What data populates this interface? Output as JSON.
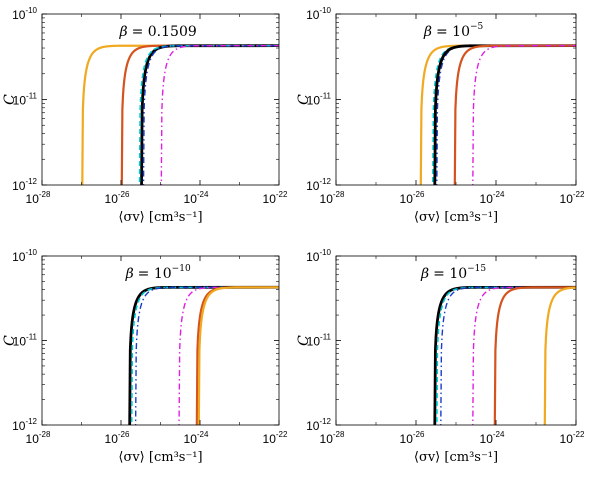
{
  "chart_data": [
    {
      "type": "line",
      "title": "β = 0.1509",
      "title_parts": {
        "sym": "β",
        "eq": "= ",
        "val": "0.1509",
        "sup": ""
      },
      "xlabel": "⟨σv⟩ [cm³s⁻¹]",
      "ylabel": "C",
      "xscale": "log",
      "yscale": "log",
      "xlim_exp": [
        -28,
        -22
      ],
      "ylim_exp": [
        -12,
        -10
      ],
      "x_tick_exps": [
        "-28",
        "-26",
        "-24",
        "-22"
      ],
      "y_tick_exps": [
        "-12",
        "-11",
        "-10"
      ],
      "grid": false,
      "legend": "none",
      "series": [
        {
          "color": "#f0a920",
          "dash": "solid",
          "width": 2.2,
          "onset_log_x": -27.0
        },
        {
          "color": "#d4531e",
          "dash": "solid",
          "width": 2.2,
          "onset_log_x": -26.0
        },
        {
          "color": "#000000",
          "dash": "solid",
          "width": 2.8,
          "onset_log_x": -25.5
        },
        {
          "color": "#00c8d2",
          "dash": "dashed",
          "width": 1.6,
          "onset_log_x": -25.55
        },
        {
          "color": "#1a3cc8",
          "dash": "dashdot",
          "width": 1.4,
          "onset_log_x": -25.45
        },
        {
          "color": "#e020e0",
          "dash": "dashdot",
          "width": 1.4,
          "onset_log_x": -25.0
        }
      ]
    },
    {
      "type": "line",
      "title": "β = 10⁻⁵",
      "title_parts": {
        "sym": "β",
        "eq": "= ",
        "val": "10",
        "sup": "−5"
      },
      "xlabel": "⟨σv⟩ [cm³s⁻¹]",
      "ylabel": "C",
      "xscale": "log",
      "yscale": "log",
      "xlim_exp": [
        -28,
        -22
      ],
      "ylim_exp": [
        -12,
        -10
      ],
      "x_tick_exps": [
        "-28",
        "-26",
        "-24",
        "-22"
      ],
      "y_tick_exps": [
        "-12",
        "-11",
        "-10"
      ],
      "grid": false,
      "legend": "none",
      "series": [
        {
          "color": "#f0a920",
          "dash": "solid",
          "width": 2.2,
          "onset_log_x": -25.9
        },
        {
          "color": "#00c8d2",
          "dash": "dashed",
          "width": 1.6,
          "onset_log_x": -25.6
        },
        {
          "color": "#1a3cc8",
          "dash": "dashdot",
          "width": 1.4,
          "onset_log_x": -25.5
        },
        {
          "color": "#000000",
          "dash": "solid",
          "width": 2.8,
          "onset_log_x": -25.55
        },
        {
          "color": "#d4531e",
          "dash": "solid",
          "width": 2.2,
          "onset_log_x": -25.05
        },
        {
          "color": "#e020e0",
          "dash": "dashdot",
          "width": 1.4,
          "onset_log_x": -24.6
        }
      ]
    },
    {
      "type": "line",
      "title": "β = 10⁻¹⁰",
      "title_parts": {
        "sym": "β",
        "eq": "= ",
        "val": "10",
        "sup": "−10"
      },
      "xlabel": "⟨σv⟩ [cm³s⁻¹]",
      "ylabel": "C",
      "xscale": "log",
      "yscale": "log",
      "xlim_exp": [
        -28,
        -22
      ],
      "ylim_exp": [
        -12,
        -10
      ],
      "x_tick_exps": [
        "-28",
        "-26",
        "-24",
        "-22"
      ],
      "y_tick_exps": [
        "-12",
        "-11",
        "-10"
      ],
      "grid": false,
      "legend": "none",
      "series": [
        {
          "color": "#000000",
          "dash": "solid",
          "width": 2.8,
          "onset_log_x": -25.8
        },
        {
          "color": "#00c8d2",
          "dash": "dashed",
          "width": 1.6,
          "onset_log_x": -25.75
        },
        {
          "color": "#1a3cc8",
          "dash": "dashdot",
          "width": 1.4,
          "onset_log_x": -25.65
        },
        {
          "color": "#e020e0",
          "dash": "dashdot",
          "width": 1.4,
          "onset_log_x": -24.55
        },
        {
          "color": "#d4531e",
          "dash": "solid",
          "width": 2.2,
          "onset_log_x": -24.1
        },
        {
          "color": "#f0a920",
          "dash": "solid",
          "width": 2.2,
          "onset_log_x": -24.05
        }
      ]
    },
    {
      "type": "line",
      "title": "β = 10⁻¹⁵",
      "title_parts": {
        "sym": "β",
        "eq": "= ",
        "val": "10",
        "sup": "−15"
      },
      "xlabel": "⟨σv⟩ [cm³s⁻¹]",
      "ylabel": "C",
      "xscale": "log",
      "yscale": "log",
      "xlim_exp": [
        -28,
        -22
      ],
      "ylim_exp": [
        -12,
        -10
      ],
      "x_tick_exps": [
        "-28",
        "-26",
        "-24",
        "-22"
      ],
      "y_tick_exps": [
        "-12",
        "-11",
        "-10"
      ],
      "grid": false,
      "legend": "none",
      "series": [
        {
          "color": "#000000",
          "dash": "solid",
          "width": 2.8,
          "onset_log_x": -25.55
        },
        {
          "color": "#00c8d2",
          "dash": "dashed",
          "width": 1.6,
          "onset_log_x": -25.5
        },
        {
          "color": "#1a3cc8",
          "dash": "dashdot",
          "width": 1.4,
          "onset_log_x": -25.4
        },
        {
          "color": "#e020e0",
          "dash": "dashdot",
          "width": 1.4,
          "onset_log_x": -24.6
        },
        {
          "color": "#d4531e",
          "dash": "solid",
          "width": 2.2,
          "onset_log_x": -24.05
        },
        {
          "color": "#f0a920",
          "dash": "solid",
          "width": 2.2,
          "onset_log_x": -22.8
        }
      ]
    }
  ],
  "plateau_log_y": -10.37
}
